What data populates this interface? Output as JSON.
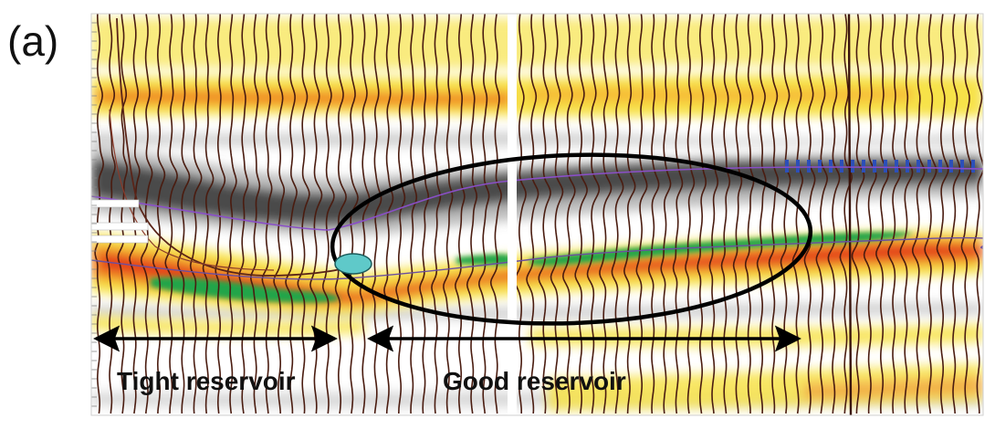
{
  "figure": {
    "panel_label": "(a)",
    "annotations": {
      "tight": "Tight reservoir",
      "good": "Good reservoir"
    },
    "colors": {
      "yellow": "#f7e24a",
      "orange": "#f08a20",
      "red": "#e2331c",
      "green": "#24a54a",
      "trough": "#1a1a1a",
      "wiggle": "#4a1c10",
      "horizon": "#8a4fc7",
      "well_marker": "#5fc9c9",
      "blue_marker": "#2c4fb8"
    }
  }
}
